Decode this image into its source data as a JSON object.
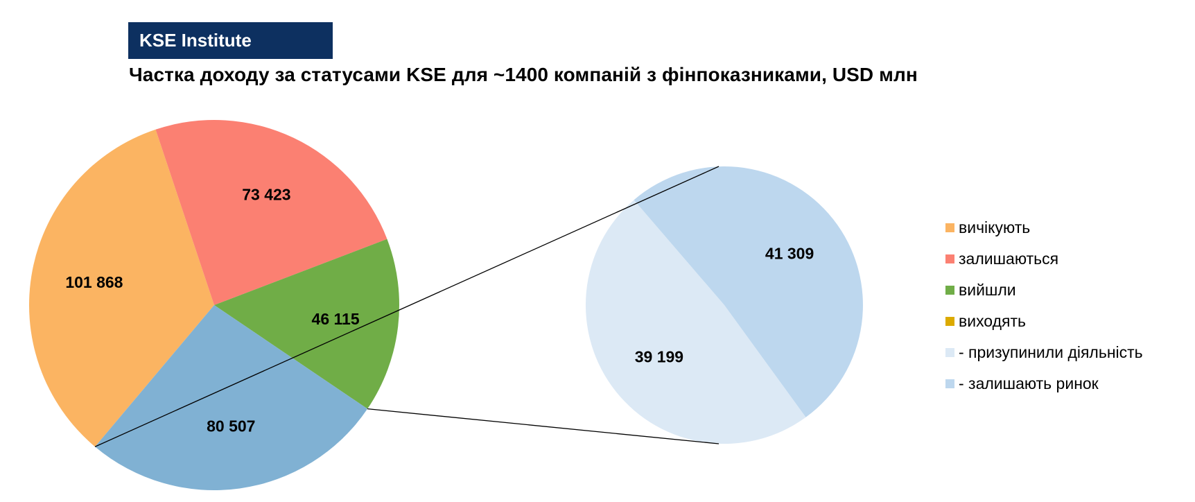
{
  "brand": "KSE Institute",
  "title": "Частка доходу за статусами KSE для ~1400 компаній з фінпоказниками, USD млн",
  "chart_data": {
    "type": "pie",
    "subtype": "pie-of-pie",
    "main_pie": {
      "slices": [
        {
          "name": "вичікують",
          "value": 101868,
          "label": "101 868",
          "color": "#fbb462"
        },
        {
          "name": "залишаються",
          "value": 73423,
          "label": "73 423",
          "color": "#fb8072"
        },
        {
          "name": "вийшли",
          "value": 46115,
          "label": "46 115",
          "color": "#70ad47"
        },
        {
          "name": "виходять",
          "value": 80507,
          "label": "80 507",
          "color": "#80b1d3"
        }
      ]
    },
    "secondary_pie": {
      "source": "виходять",
      "slices": [
        {
          "name": "- призупинили діяльність",
          "value": 39199,
          "label": "39 199",
          "color": "#dce9f5"
        },
        {
          "name": "- залишають ринок",
          "value": 41309,
          "label": "41 309",
          "color": "#bdd7ee"
        }
      ]
    },
    "legend": {
      "position": "right",
      "items": [
        {
          "label": "вичікують",
          "color": "#fbb462"
        },
        {
          "label": "залишаються",
          "color": "#fb8072"
        },
        {
          "label": "вийшли",
          "color": "#70ad47"
        },
        {
          "label": "виходять",
          "color": "#dcaa00"
        },
        {
          "label": "- призупинили діяльність",
          "color": "#dce9f5"
        },
        {
          "label": "- залишають ринок",
          "color": "#bdd7ee"
        }
      ]
    }
  }
}
